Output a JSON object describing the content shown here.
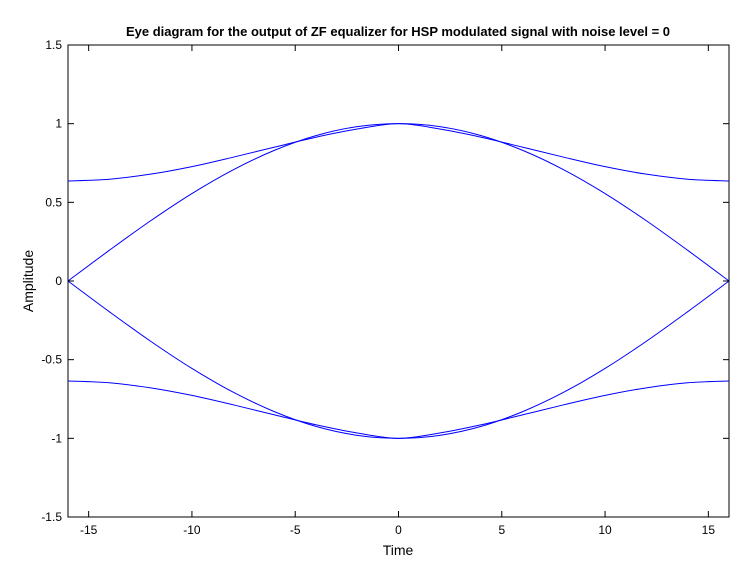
{
  "chart_data": {
    "type": "line",
    "title": "Eye diagram for the output of ZF equalizer for HSP modulated signal with noise level = 0",
    "xlabel": "Time",
    "ylabel": "Amplitude",
    "xlim": [
      -16,
      16
    ],
    "ylim": [
      -1.5,
      1.5
    ],
    "xticks": [
      -15,
      -10,
      -5,
      0,
      5,
      10,
      15
    ],
    "yticks": [
      -1.5,
      -1,
      -0.5,
      0,
      0.5,
      1,
      1.5
    ],
    "grid": false,
    "line_color": "#0000ff",
    "series": [
      {
        "x": [
          -16,
          -14,
          -12,
          -10,
          -8,
          -6,
          -4,
          -2,
          0,
          2,
          4,
          6,
          8,
          10,
          12,
          14,
          16
        ],
        "values": [
          0.636,
          0.647,
          0.679,
          0.727,
          0.787,
          0.851,
          0.914,
          0.966,
          1.0,
          0.966,
          0.914,
          0.851,
          0.787,
          0.727,
          0.679,
          0.647,
          0.636
        ]
      },
      {
        "x": [
          -16,
          -14,
          -12,
          -10,
          -8,
          -6,
          -4,
          -2,
          0,
          2,
          4,
          6,
          8,
          10,
          12,
          14,
          16
        ],
        "values": [
          -0.636,
          -0.647,
          -0.679,
          -0.727,
          -0.787,
          -0.851,
          -0.914,
          -0.966,
          -1.0,
          -0.966,
          -0.914,
          -0.851,
          -0.787,
          -0.727,
          -0.679,
          -0.647,
          -0.636
        ]
      },
      {
        "x": [
          -16,
          -14,
          -12,
          -10,
          -8,
          -6,
          -4,
          -2,
          0,
          2,
          4,
          6,
          8,
          10,
          12,
          14,
          16
        ],
        "values": [
          0.0,
          0.195,
          0.383,
          0.556,
          0.707,
          0.831,
          0.924,
          0.981,
          1.0,
          0.981,
          0.924,
          0.831,
          0.707,
          0.556,
          0.383,
          0.195,
          0.0
        ]
      },
      {
        "x": [
          -16,
          -14,
          -12,
          -10,
          -8,
          -6,
          -4,
          -2,
          0,
          2,
          4,
          6,
          8,
          10,
          12,
          14,
          16
        ],
        "values": [
          0.0,
          -0.195,
          -0.383,
          -0.556,
          -0.707,
          -0.831,
          -0.924,
          -0.981,
          -1.0,
          -0.981,
          -0.924,
          -0.831,
          -0.707,
          -0.556,
          -0.383,
          -0.195,
          0.0
        ]
      }
    ]
  }
}
